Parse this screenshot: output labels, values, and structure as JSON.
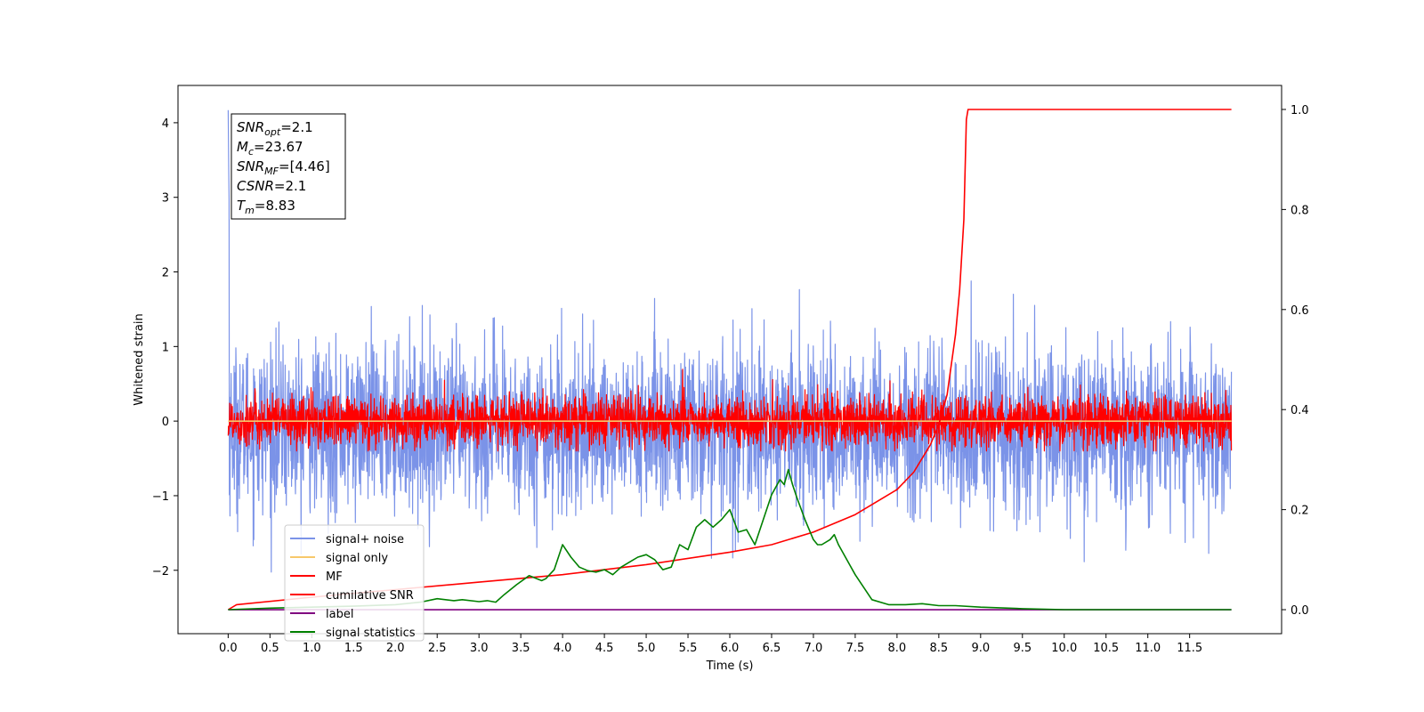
{
  "chart_data": {
    "type": "line",
    "xlabel": "Time (s)",
    "ylabel": "Whitened strain",
    "xlim": [
      -0.6,
      12.6
    ],
    "ylim": [
      -2.85,
      4.5
    ],
    "y2lim": [
      -0.048,
      1.048
    ],
    "x_ticks": [
      "0.0",
      "0.5",
      "1.0",
      "1.5",
      "2.0",
      "2.5",
      "3.0",
      "3.5",
      "4.0",
      "4.5",
      "5.0",
      "5.5",
      "6.0",
      "6.5",
      "7.0",
      "7.5",
      "8.0",
      "8.5",
      "9.0",
      "9.5",
      "10.0",
      "10.5",
      "11.0",
      "11.5"
    ],
    "y_ticks": [
      "−2",
      "−1",
      "0",
      "1",
      "2",
      "3",
      "4"
    ],
    "y2_ticks": [
      "0.0",
      "0.2",
      "0.4",
      "0.6",
      "0.8",
      "1.0"
    ],
    "grid": false,
    "legend_position": "lower-left",
    "annotation": {
      "lines": [
        {
          "main": "SNR",
          "sub": "opt",
          "rest": "=2.1"
        },
        {
          "main": "M",
          "sub": "c",
          "rest": "=23.67"
        },
        {
          "main": "SNR",
          "sub": "MF",
          "rest": "=[4.46]"
        },
        {
          "main": "CSNR",
          "sub": "",
          "rest": "=2.1"
        },
        {
          "main": "T",
          "sub": "m",
          "rest": "=8.83"
        }
      ]
    },
    "series": [
      {
        "name": "signal+ noise",
        "color": "#7b93e8",
        "axis": "left",
        "kind": "noise",
        "x_range": [
          0.0,
          12.0
        ],
        "center": -0.1,
        "std": 0.55,
        "range": [
          -2.55,
          4.17
        ]
      },
      {
        "name": "signal only",
        "color": "#f7c86b",
        "axis": "left",
        "kind": "flat",
        "x_range": [
          0.0,
          12.0
        ],
        "value": 0.0
      },
      {
        "name": "MF",
        "color": "#ff0000",
        "axis": "left",
        "kind": "noise",
        "x_range": [
          0.0,
          12.0
        ],
        "center": 0.0,
        "std": 0.17,
        "range": [
          -0.4,
          0.98
        ]
      },
      {
        "name": "cumilative SNR",
        "color": "#ff0000",
        "axis": "right",
        "kind": "curve",
        "x": [
          0.0,
          0.1,
          1.0,
          2.0,
          3.0,
          4.0,
          5.0,
          6.0,
          6.5,
          7.0,
          7.5,
          8.0,
          8.2,
          8.4,
          8.5,
          8.6,
          8.7,
          8.75,
          8.8,
          8.83,
          8.85,
          9.0,
          10.0,
          11.0,
          12.0
        ],
        "y": [
          0.0,
          0.01,
          0.025,
          0.04,
          0.055,
          0.07,
          0.09,
          0.115,
          0.13,
          0.155,
          0.19,
          0.24,
          0.275,
          0.33,
          0.37,
          0.43,
          0.55,
          0.64,
          0.78,
          0.98,
          1.0,
          1.0,
          1.0,
          1.0,
          1.0
        ]
      },
      {
        "name": "label",
        "color": "#800080",
        "axis": "right",
        "kind": "flat",
        "x_range": [
          0.0,
          12.0
        ],
        "value": 0.0
      },
      {
        "name": "signal statistics",
        "color": "#008000",
        "axis": "right",
        "kind": "curve",
        "x": [
          0.0,
          0.5,
          1.0,
          1.5,
          2.0,
          2.3,
          2.5,
          2.7,
          2.8,
          3.0,
          3.1,
          3.2,
          3.3,
          3.45,
          3.6,
          3.75,
          3.8,
          3.9,
          4.0,
          4.1,
          4.2,
          4.3,
          4.4,
          4.5,
          4.6,
          4.7,
          4.8,
          4.9,
          5.0,
          5.1,
          5.2,
          5.3,
          5.4,
          5.5,
          5.6,
          5.7,
          5.8,
          5.9,
          6.0,
          6.1,
          6.2,
          6.3,
          6.4,
          6.5,
          6.6,
          6.65,
          6.7,
          6.75,
          6.8,
          6.9,
          7.0,
          7.05,
          7.1,
          7.2,
          7.25,
          7.3,
          7.5,
          7.7,
          7.9,
          8.1,
          8.3,
          8.5,
          8.7,
          9.0,
          9.5,
          10.0,
          11.0,
          12.0
        ],
        "y": [
          0.0,
          0.003,
          0.005,
          0.007,
          0.01,
          0.015,
          0.022,
          0.018,
          0.02,
          0.016,
          0.018,
          0.015,
          0.03,
          0.05,
          0.068,
          0.058,
          0.062,
          0.08,
          0.13,
          0.105,
          0.085,
          0.078,
          0.075,
          0.08,
          0.07,
          0.085,
          0.095,
          0.105,
          0.11,
          0.1,
          0.08,
          0.085,
          0.13,
          0.12,
          0.165,
          0.18,
          0.165,
          0.18,
          0.2,
          0.155,
          0.16,
          0.13,
          0.18,
          0.23,
          0.26,
          0.25,
          0.28,
          0.25,
          0.225,
          0.18,
          0.14,
          0.13,
          0.13,
          0.14,
          0.15,
          0.13,
          0.07,
          0.02,
          0.01,
          0.01,
          0.012,
          0.008,
          0.008,
          0.005,
          0.002,
          0.0,
          0.0,
          0.0
        ]
      }
    ]
  }
}
